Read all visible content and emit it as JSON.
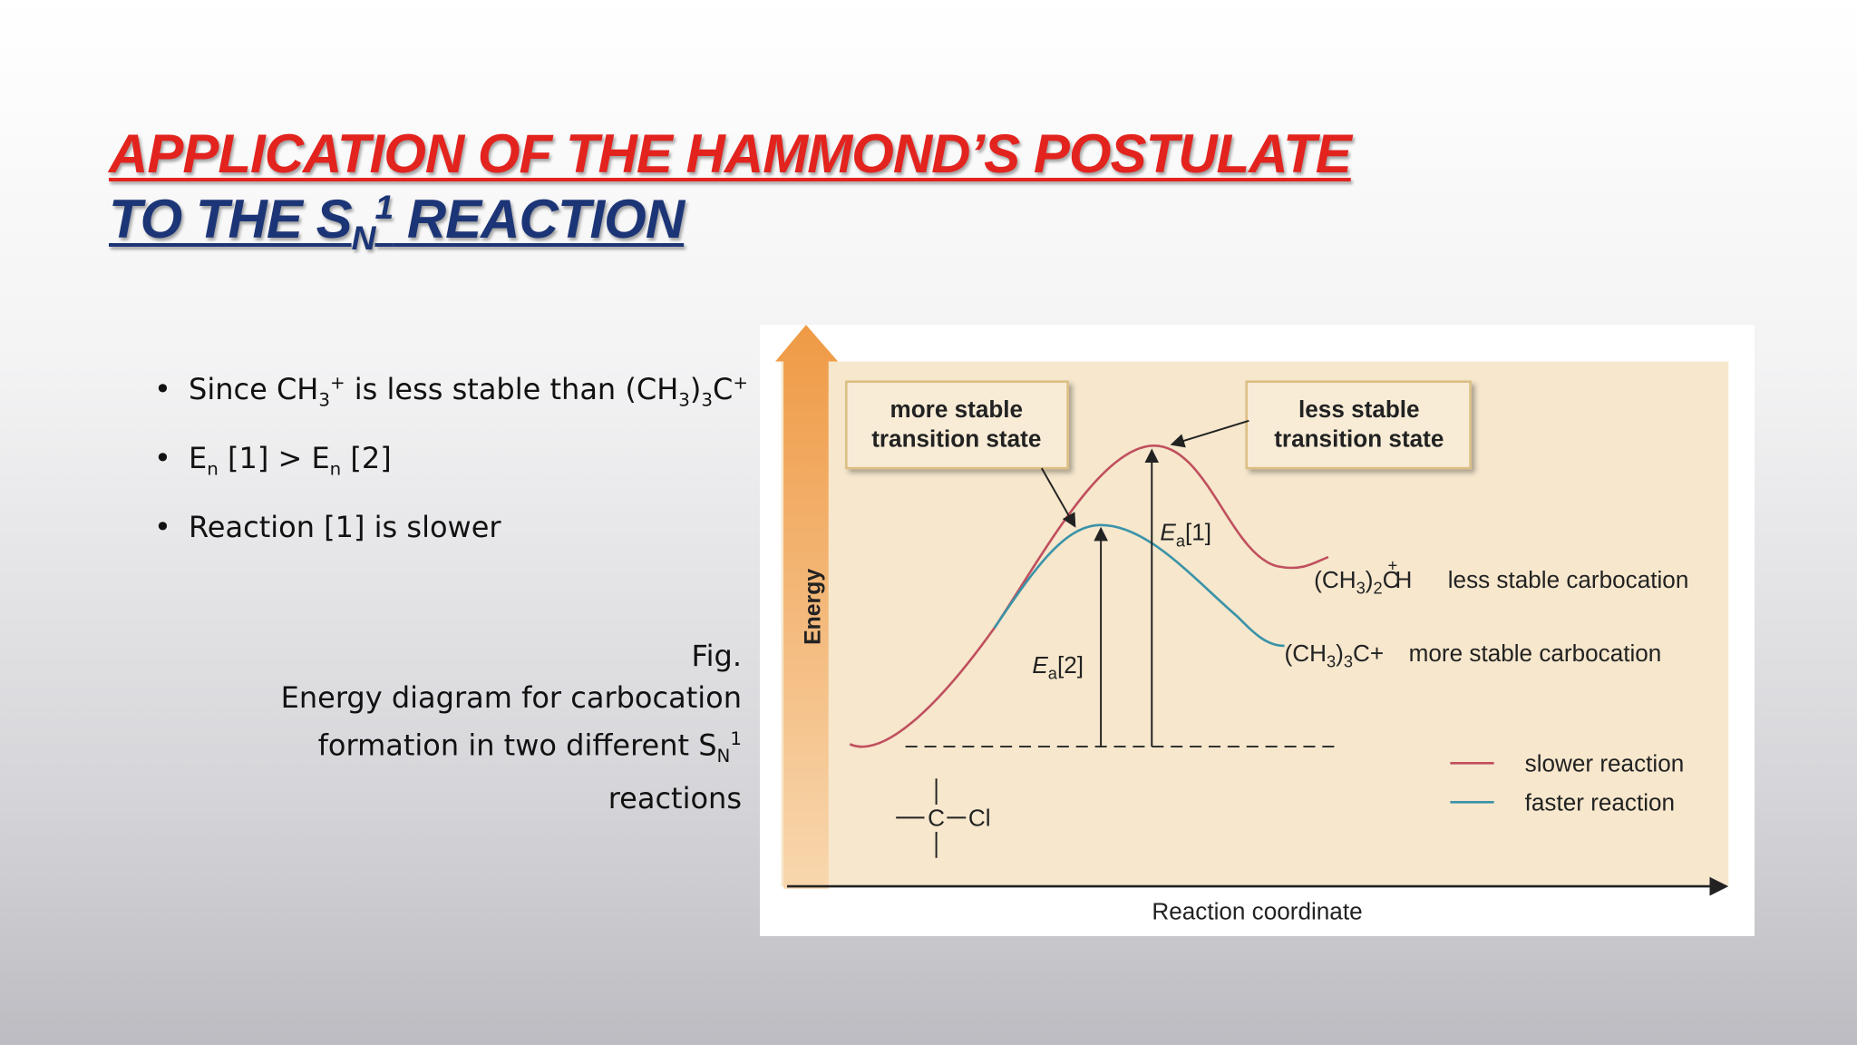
{
  "title": {
    "line1": "APPLICATION OF THE HAMMOND’S POSTULATE",
    "line2": [
      "TO THE S",
      "N",
      "1",
      " REACTION"
    ]
  },
  "bullets": [
    [
      "Since CH",
      "3",
      "+",
      " is less stable than (CH",
      "3",
      ")",
      "3",
      "C",
      "+"
    ],
    [
      "E",
      "n",
      " [1] > E",
      "n",
      " [2]"
    ],
    [
      "Reaction [1] is slower"
    ]
  ],
  "caption": {
    "line1": "Fig.",
    "line2": "Energy diagram for carbocation",
    "line3": [
      "formation in two different S",
      "N",
      "1"
    ],
    "line4": "reactions"
  },
  "figure": {
    "y_axis_label": "Energy",
    "x_axis_label": "Reaction coordinate",
    "box_left": [
      "more stable",
      "transition state"
    ],
    "box_right": [
      "less stable",
      "transition state"
    ],
    "ea1": [
      "E",
      "a",
      "[1]"
    ],
    "ea2": [
      "E",
      "a",
      "[2]"
    ],
    "product1": [
      "(CH",
      "3",
      ")",
      "2",
      "C",
      "+",
      "H"
    ],
    "product1_label": "less stable carbocation",
    "product2": [
      "(CH",
      "3",
      ")",
      "3",
      "C+"
    ],
    "product2_label": "more stable carbocation",
    "reactant": [
      "C",
      "Cl"
    ],
    "legend": [
      "slower reaction",
      "faster reaction"
    ]
  }
}
